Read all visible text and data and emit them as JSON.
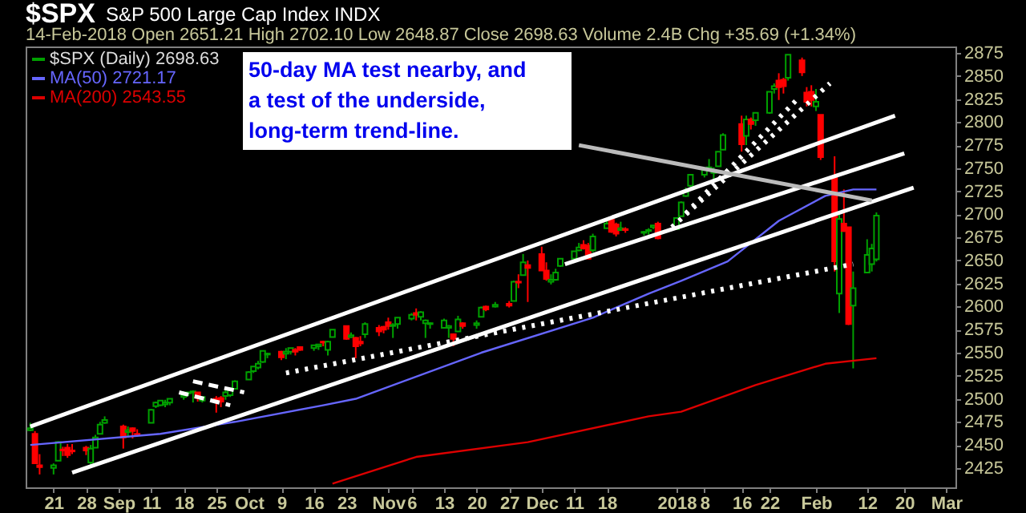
{
  "chart_data": {
    "type": "candlestick",
    "title": "$SPX",
    "subtitle": "S&P 500 Large Cap Index INDX",
    "annotations": [
      "14-Feb-2018   Open 2651.21  High 2702.10  Low 2648.87  Close 2698.63  Volume 2.4B  Chg +35.69 (+1.34%)",
      "50-day MA test nearby, and a test of the underside, long-term trend-line."
    ],
    "xlim": [
      "2017-08-15",
      "2018-03-03"
    ],
    "xticks": [
      {
        "value": "2017-08-21",
        "label": "21"
      },
      {
        "value": "2017-08-28",
        "label": "28"
      },
      {
        "value": "2017-09-04",
        "label": "Sep"
      },
      {
        "value": "2017-09-11",
        "label": "11"
      },
      {
        "value": "2017-09-18",
        "label": "18"
      },
      {
        "value": "2017-09-25",
        "label": "25"
      },
      {
        "value": "2017-10-02",
        "label": "Oct"
      },
      {
        "value": "2017-10-09",
        "label": "9"
      },
      {
        "value": "2017-10-16",
        "label": "16"
      },
      {
        "value": "2017-10-23",
        "label": "23"
      },
      {
        "value": "2017-11-01",
        "label": "Nov"
      },
      {
        "value": "2017-11-06",
        "label": "6"
      },
      {
        "value": "2017-11-13",
        "label": "13"
      },
      {
        "value": "2017-11-20",
        "label": "20"
      },
      {
        "value": "2017-11-27",
        "label": "27"
      },
      {
        "value": "2017-12-04",
        "label": "Dec"
      },
      {
        "value": "2017-12-11",
        "label": "11"
      },
      {
        "value": "2017-12-18",
        "label": "18"
      },
      {
        "value": "2018-01-02",
        "label": "2018"
      },
      {
        "value": "2018-01-08",
        "label": "8"
      },
      {
        "value": "2018-01-16",
        "label": "16"
      },
      {
        "value": "2018-01-22",
        "label": "22"
      },
      {
        "value": "2018-02-01",
        "label": "Feb"
      },
      {
        "value": "2018-02-12",
        "label": "12"
      },
      {
        "value": "2018-02-20",
        "label": "20"
      },
      {
        "value": "2018-03-01",
        "label": "Mar"
      }
    ],
    "ylim": [
      2404,
      2882
    ],
    "yticks": [
      2425,
      2450,
      2475,
      2500,
      2525,
      2550,
      2575,
      2600,
      2625,
      2650,
      2675,
      2700,
      2725,
      2750,
      2775,
      2800,
      2825,
      2850,
      2875
    ],
    "legend": "top left",
    "series": [
      {
        "name": "$SPX (Daily) 2698.63",
        "x": [
          "2017-08-16",
          "2017-08-17",
          "2017-08-18",
          "2017-08-21",
          "2017-08-22",
          "2017-08-23",
          "2017-08-24",
          "2017-08-25",
          "2017-08-28",
          "2017-08-29",
          "2017-08-30",
          "2017-08-31",
          "2017-09-01",
          "2017-09-05",
          "2017-09-06",
          "2017-09-07",
          "2017-09-08",
          "2017-09-11",
          "2017-09-12",
          "2017-09-13",
          "2017-09-14",
          "2017-09-15",
          "2017-09-18",
          "2017-09-19",
          "2017-09-20",
          "2017-09-21",
          "2017-09-22",
          "2017-09-25",
          "2017-09-26",
          "2017-09-27",
          "2017-09-28",
          "2017-09-29",
          "2017-10-02",
          "2017-10-03",
          "2017-10-04",
          "2017-10-05",
          "2017-10-06",
          "2017-10-09",
          "2017-10-10",
          "2017-10-11",
          "2017-10-12",
          "2017-10-13",
          "2017-10-16",
          "2017-10-17",
          "2017-10-18",
          "2017-10-19",
          "2017-10-20",
          "2017-10-23",
          "2017-10-24",
          "2017-10-25",
          "2017-10-26",
          "2017-10-27",
          "2017-10-30",
          "2017-10-31",
          "2017-11-01",
          "2017-11-02",
          "2017-11-03",
          "2017-11-06",
          "2017-11-07",
          "2017-11-08",
          "2017-11-09",
          "2017-11-10",
          "2017-11-13",
          "2017-11-14",
          "2017-11-15",
          "2017-11-16",
          "2017-11-17",
          "2017-11-20",
          "2017-11-21",
          "2017-11-22",
          "2017-11-24",
          "2017-11-27",
          "2017-11-28",
          "2017-11-29",
          "2017-11-30",
          "2017-12-01",
          "2017-12-04",
          "2017-12-05",
          "2017-12-06",
          "2017-12-07",
          "2017-12-08",
          "2017-12-11",
          "2017-12-12",
          "2017-12-13",
          "2017-12-14",
          "2017-12-15",
          "2017-12-18",
          "2017-12-19",
          "2017-12-20",
          "2017-12-21",
          "2017-12-22",
          "2017-12-26",
          "2017-12-27",
          "2017-12-28",
          "2017-12-29",
          "2018-01-02",
          "2018-01-03",
          "2018-01-04",
          "2018-01-05",
          "2018-01-08",
          "2018-01-09",
          "2018-01-10",
          "2018-01-11",
          "2018-01-12",
          "2018-01-16",
          "2018-01-17",
          "2018-01-18",
          "2018-01-19",
          "2018-01-22",
          "2018-01-23",
          "2018-01-24",
          "2018-01-25",
          "2018-01-26",
          "2018-01-29",
          "2018-01-30",
          "2018-01-31",
          "2018-02-01",
          "2018-02-02",
          "2018-02-05",
          "2018-02-06",
          "2018-02-07",
          "2018-02-08",
          "2018-02-09",
          "2018-02-12",
          "2018-02-13",
          "2018-02-14"
        ],
        "ohlc": [
          [
            2466,
            2474,
            2465,
            2468
          ],
          [
            2462,
            2465,
            2430,
            2430
          ],
          [
            2428,
            2440,
            2418,
            2426
          ],
          [
            2425,
            2430,
            2418,
            2428
          ],
          [
            2433,
            2454,
            2433,
            2453
          ],
          [
            2445,
            2448,
            2438,
            2444
          ],
          [
            2447,
            2451,
            2436,
            2439
          ],
          [
            2444,
            2451,
            2440,
            2443
          ],
          [
            2447,
            2449,
            2439,
            2444
          ],
          [
            2431,
            2450,
            2428,
            2446
          ],
          [
            2447,
            2461,
            2447,
            2458
          ],
          [
            2462,
            2475,
            2462,
            2472
          ],
          [
            2474,
            2481,
            2473,
            2477
          ],
          [
            2470,
            2472,
            2446,
            2458
          ],
          [
            2464,
            2470,
            2458,
            2466
          ],
          [
            2468,
            2469,
            2457,
            2465
          ],
          [
            2462,
            2467,
            2459,
            2461
          ],
          [
            2474,
            2489,
            2474,
            2488
          ],
          [
            2492,
            2497,
            2490,
            2496
          ],
          [
            2493,
            2498,
            2492,
            2498
          ],
          [
            2494,
            2499,
            2491,
            2496
          ],
          [
            2496,
            2500,
            2493,
            2500
          ],
          [
            2502,
            2508,
            2499,
            2504
          ],
          [
            2506,
            2507,
            2503,
            2507
          ],
          [
            2507,
            2509,
            2496,
            2508
          ],
          [
            2507,
            2507,
            2497,
            2501
          ],
          [
            2498,
            2503,
            2496,
            2502
          ],
          [
            2500,
            2503,
            2485,
            2497
          ],
          [
            2501,
            2503,
            2491,
            2497
          ],
          [
            2503,
            2510,
            2499,
            2507
          ],
          [
            2504,
            2510,
            2502,
            2510
          ],
          [
            2511,
            2520,
            2510,
            2519
          ],
          [
            2521,
            2530,
            2521,
            2529
          ],
          [
            2530,
            2535,
            2528,
            2535
          ],
          [
            2534,
            2541,
            2532,
            2538
          ],
          [
            2540,
            2552,
            2539,
            2552
          ],
          [
            2548,
            2550,
            2544,
            2549
          ],
          [
            2551,
            2552,
            2542,
            2545
          ],
          [
            2549,
            2555,
            2543,
            2551
          ],
          [
            2551,
            2555,
            2548,
            2555
          ],
          [
            2553,
            2555,
            2547,
            2551
          ],
          [
            2556,
            2557,
            2552,
            2553
          ],
          [
            2555,
            2558,
            2552,
            2558
          ],
          [
            2557,
            2559,
            2553,
            2559
          ],
          [
            2562,
            2563,
            2557,
            2561
          ],
          [
            2553,
            2563,
            2547,
            2562
          ],
          [
            2567,
            2575,
            2567,
            2575
          ],
          [
            2579,
            2579,
            2564,
            2565
          ],
          [
            2567,
            2572,
            2566,
            2569
          ],
          [
            2566,
            2567,
            2544,
            2557
          ],
          [
            2562,
            2568,
            2557,
            2560
          ],
          [
            2570,
            2583,
            2566,
            2581
          ],
          [
            2577,
            2580,
            2568,
            2573
          ],
          [
            2578,
            2579,
            2571,
            2575
          ],
          [
            2583,
            2588,
            2575,
            2579
          ],
          [
            2579,
            2582,
            2566,
            2580
          ],
          [
            2581,
            2588,
            2576,
            2588
          ],
          [
            2587,
            2593,
            2585,
            2591
          ],
          [
            2593,
            2598,
            2585,
            2591
          ],
          [
            2589,
            2595,
            2585,
            2594
          ],
          [
            2582,
            2586,
            2566,
            2585
          ],
          [
            2581,
            2583,
            2576,
            2582
          ],
          [
            2577,
            2587,
            2576,
            2585
          ],
          [
            2577,
            2580,
            2566,
            2579
          ],
          [
            2570,
            2571,
            2557,
            2565
          ],
          [
            2573,
            2590,
            2573,
            2586
          ],
          [
            2582,
            2583,
            2576,
            2579
          ],
          [
            2580,
            2585,
            2576,
            2582
          ],
          [
            2589,
            2600,
            2589,
            2599
          ],
          [
            2600,
            2601,
            2595,
            2597
          ],
          [
            2600,
            2605,
            2599,
            2602
          ],
          [
            2603,
            2606,
            2599,
            2601
          ],
          [
            2606,
            2628,
            2606,
            2627
          ],
          [
            2627,
            2635,
            2620,
            2626
          ],
          [
            2634,
            2657,
            2634,
            2648
          ],
          [
            2645,
            2650,
            2605,
            2642
          ],
          [
            2657,
            2665,
            2639,
            2639
          ],
          [
            2639,
            2648,
            2628,
            2630
          ],
          [
            2627,
            2635,
            2624,
            2629
          ],
          [
            2629,
            2641,
            2628,
            2637
          ],
          [
            2644,
            2652,
            2643,
            2652
          ],
          [
            2652,
            2660,
            2650,
            2660
          ],
          [
            2661,
            2669,
            2660,
            2664
          ],
          [
            2667,
            2672,
            2662,
            2663
          ],
          [
            2666,
            2669,
            2652,
            2652
          ],
          [
            2661,
            2679,
            2659,
            2676
          ],
          [
            2685,
            2694,
            2685,
            2690
          ],
          [
            2694,
            2695,
            2680,
            2681
          ],
          [
            2689,
            2691,
            2676,
            2679
          ],
          [
            2683,
            2692,
            2682,
            2685
          ],
          [
            2684,
            2686,
            2680,
            2683
          ],
          [
            2680,
            2682,
            2677,
            2681
          ],
          [
            2682,
            2685,
            2678,
            2683
          ],
          [
            2686,
            2688,
            2684,
            2688
          ],
          [
            2690,
            2692,
            2673,
            2674
          ],
          [
            2684,
            2696,
            2683,
            2696
          ],
          [
            2698,
            2714,
            2698,
            2713
          ],
          [
            2720,
            2729,
            2719,
            2724
          ],
          [
            2731,
            2743,
            2728,
            2743
          ],
          [
            2743,
            2749,
            2740,
            2748
          ],
          [
            2749,
            2760,
            2747,
            2751
          ],
          [
            2745,
            2751,
            2736,
            2748
          ],
          [
            2752,
            2768,
            2752,
            2768
          ],
          [
            2770,
            2788,
            2770,
            2786
          ],
          [
            2798,
            2807,
            2768,
            2776
          ],
          [
            2785,
            2807,
            2775,
            2803
          ],
          [
            2803,
            2805,
            2792,
            2798
          ],
          [
            2802,
            2810,
            2796,
            2810
          ],
          [
            2810,
            2833,
            2809,
            2833
          ],
          [
            2836,
            2842,
            2831,
            2839
          ],
          [
            2845,
            2853,
            2824,
            2838
          ],
          [
            2846,
            2848,
            2831,
            2839
          ],
          [
            2848,
            2873,
            2845,
            2873
          ],
          [
            2867,
            2870,
            2850,
            2854
          ],
          [
            2832,
            2838,
            2817,
            2822
          ],
          [
            2833,
            2840,
            2817,
            2824
          ],
          [
            2817,
            2836,
            2812,
            2822
          ],
          [
            2808,
            2808,
            2759,
            2762
          ],
          [
            2741,
            2763,
            2638,
            2649
          ],
          [
            2614,
            2701,
            2593,
            2695
          ],
          [
            2690,
            2727,
            2681,
            2682
          ],
          [
            2686,
            2686,
            2580,
            2581
          ],
          [
            2601,
            2638,
            2533,
            2620
          ],
          [
            2637,
            2673,
            2637,
            2656
          ],
          [
            2646,
            2668,
            2638,
            2663
          ],
          [
            2651.21,
            2702.1,
            2648.87,
            2698.63
          ]
        ],
        "colors": [
          "#00a000",
          "#ff0000",
          "#ff0000",
          "#00a000",
          "#00a000",
          "#ff0000",
          "#ff0000",
          "#ff0000",
          "#ff0000",
          "#00a000",
          "#00a000",
          "#00a000",
          "#00a000",
          "#ff0000",
          "#00a000",
          "#ff0000",
          "#ff0000",
          "#00a000",
          "#00a000",
          "#00a000",
          "#00a000",
          "#00a000",
          "#00a000",
          "#00a000",
          "#00a000",
          "#ff0000",
          "#00a000",
          "#ff0000",
          "#ff0000",
          "#00a000",
          "#00a000",
          "#00a000",
          "#00a000",
          "#00a000",
          "#00a000",
          "#00a000",
          "#00a000",
          "#ff0000",
          "#00a000",
          "#00a000",
          "#ff0000",
          "#ff0000",
          "#00a000",
          "#00a000",
          "#ff0000",
          "#00a000",
          "#00a000",
          "#ff0000",
          "#00a000",
          "#ff0000",
          "#ff0000",
          "#00a000",
          "#ff0000",
          "#ff0000",
          "#ff0000",
          "#00a000",
          "#00a000",
          "#00a000",
          "#ff0000",
          "#00a000",
          "#00a000",
          "#00a000",
          "#00a000",
          "#00a000",
          "#ff0000",
          "#00a000",
          "#ff0000",
          "#00a000",
          "#00a000",
          "#ff0000",
          "#00a000",
          "#ff0000",
          "#00a000",
          "#ff0000",
          "#00a000",
          "#ff0000",
          "#ff0000",
          "#ff0000",
          "#00a000",
          "#00a000",
          "#00a000",
          "#00a000",
          "#00a000",
          "#ff0000",
          "#ff0000",
          "#00a000",
          "#00a000",
          "#ff0000",
          "#ff0000",
          "#00a000",
          "#ff0000",
          "#00a000",
          "#00a000",
          "#00a000",
          "#ff0000",
          "#00a000",
          "#00a000",
          "#00a000",
          "#00a000",
          "#00a000",
          "#00a000",
          "#00a000",
          "#00a000",
          "#00a000",
          "#ff0000",
          "#00a000",
          "#ff0000",
          "#00a000",
          "#00a000",
          "#00a000",
          "#ff0000",
          "#ff0000",
          "#00a000",
          "#ff0000",
          "#ff0000",
          "#ff0000",
          "#00a000",
          "#ff0000",
          "#ff0000",
          "#00a000",
          "#ff0000",
          "#ff0000",
          "#00a000",
          "#00a000",
          "#00a000",
          "#00a000"
        ]
      },
      {
        "name": "MA(50) 2721.17",
        "type": "line",
        "color": "#6666ff",
        "x": [
          "2017-08-16",
          "2017-09-13",
          "2017-09-29",
          "2017-10-18",
          "2017-10-25",
          "2017-11-21",
          "2017-12-15",
          "2017-12-27",
          "2018-01-03",
          "2018-01-13",
          "2018-01-24",
          "2018-02-03",
          "2018-02-09",
          "2018-02-14"
        ],
        "values": [
          2450,
          2462,
          2475,
          2493,
          2500,
          2550,
          2588,
          2614,
          2628,
          2649,
          2693,
          2720,
          2727,
          2727
        ]
      },
      {
        "name": "MA(200) 2543.55",
        "type": "line",
        "color": "#dd0000",
        "x": [
          "2017-10-20",
          "2017-11-07",
          "2017-12-01",
          "2017-12-27",
          "2018-01-03",
          "2018-01-19",
          "2018-02-03",
          "2018-02-14"
        ],
        "values": [
          2408,
          2437,
          2453,
          2481,
          2486,
          2515,
          2538,
          2544
        ]
      },
      {
        "type": "line",
        "color": "#ffffff",
        "line_style": "solid",
        "x": [
          "2017-08-16",
          "2018-02-18"
        ],
        "values": [
          2470,
          2807
        ]
      },
      {
        "type": "line",
        "color": "#ffffff",
        "line_style": "solid",
        "x": [
          "2017-12-09",
          "2018-02-20"
        ],
        "values": [
          2646,
          2766
        ]
      },
      {
        "type": "line",
        "color": "#ffffff",
        "line_style": "solid",
        "x": [
          "2017-08-25",
          "2018-02-22"
        ],
        "values": [
          2420,
          2729
        ]
      },
      {
        "type": "line",
        "color": "#ffffff",
        "line_style": "dotted",
        "x": [
          "2017-10-10",
          "2018-02-09"
        ],
        "values": [
          2528,
          2646
        ]
      },
      {
        "type": "line",
        "color": "#ffffff",
        "line_style": "dotted",
        "x": [
          "2018-01-01",
          "2018-02-04"
        ],
        "values": [
          2686,
          2842
        ]
      },
      {
        "type": "line",
        "color": "#ffffff",
        "line_style": "dotted",
        "x": [
          "2018-01-04",
          "2018-01-28"
        ],
        "values": [
          2701,
          2825
        ]
      },
      {
        "type": "line",
        "color": "#ffffff",
        "line_style": "dashed",
        "x": [
          "2017-09-20",
          "2017-10-01"
        ],
        "values": [
          2519,
          2507
        ]
      },
      {
        "type": "line",
        "color": "#ffffff",
        "line_style": "dashed",
        "x": [
          "2017-09-17",
          "2017-09-28"
        ],
        "values": [
          2507,
          2493
        ]
      },
      {
        "type": "line",
        "color": "#bbbbbb",
        "line_style": "solid",
        "x": [
          "2017-12-12",
          "2018-02-13"
        ],
        "values": [
          2775,
          2715
        ]
      }
    ]
  }
}
